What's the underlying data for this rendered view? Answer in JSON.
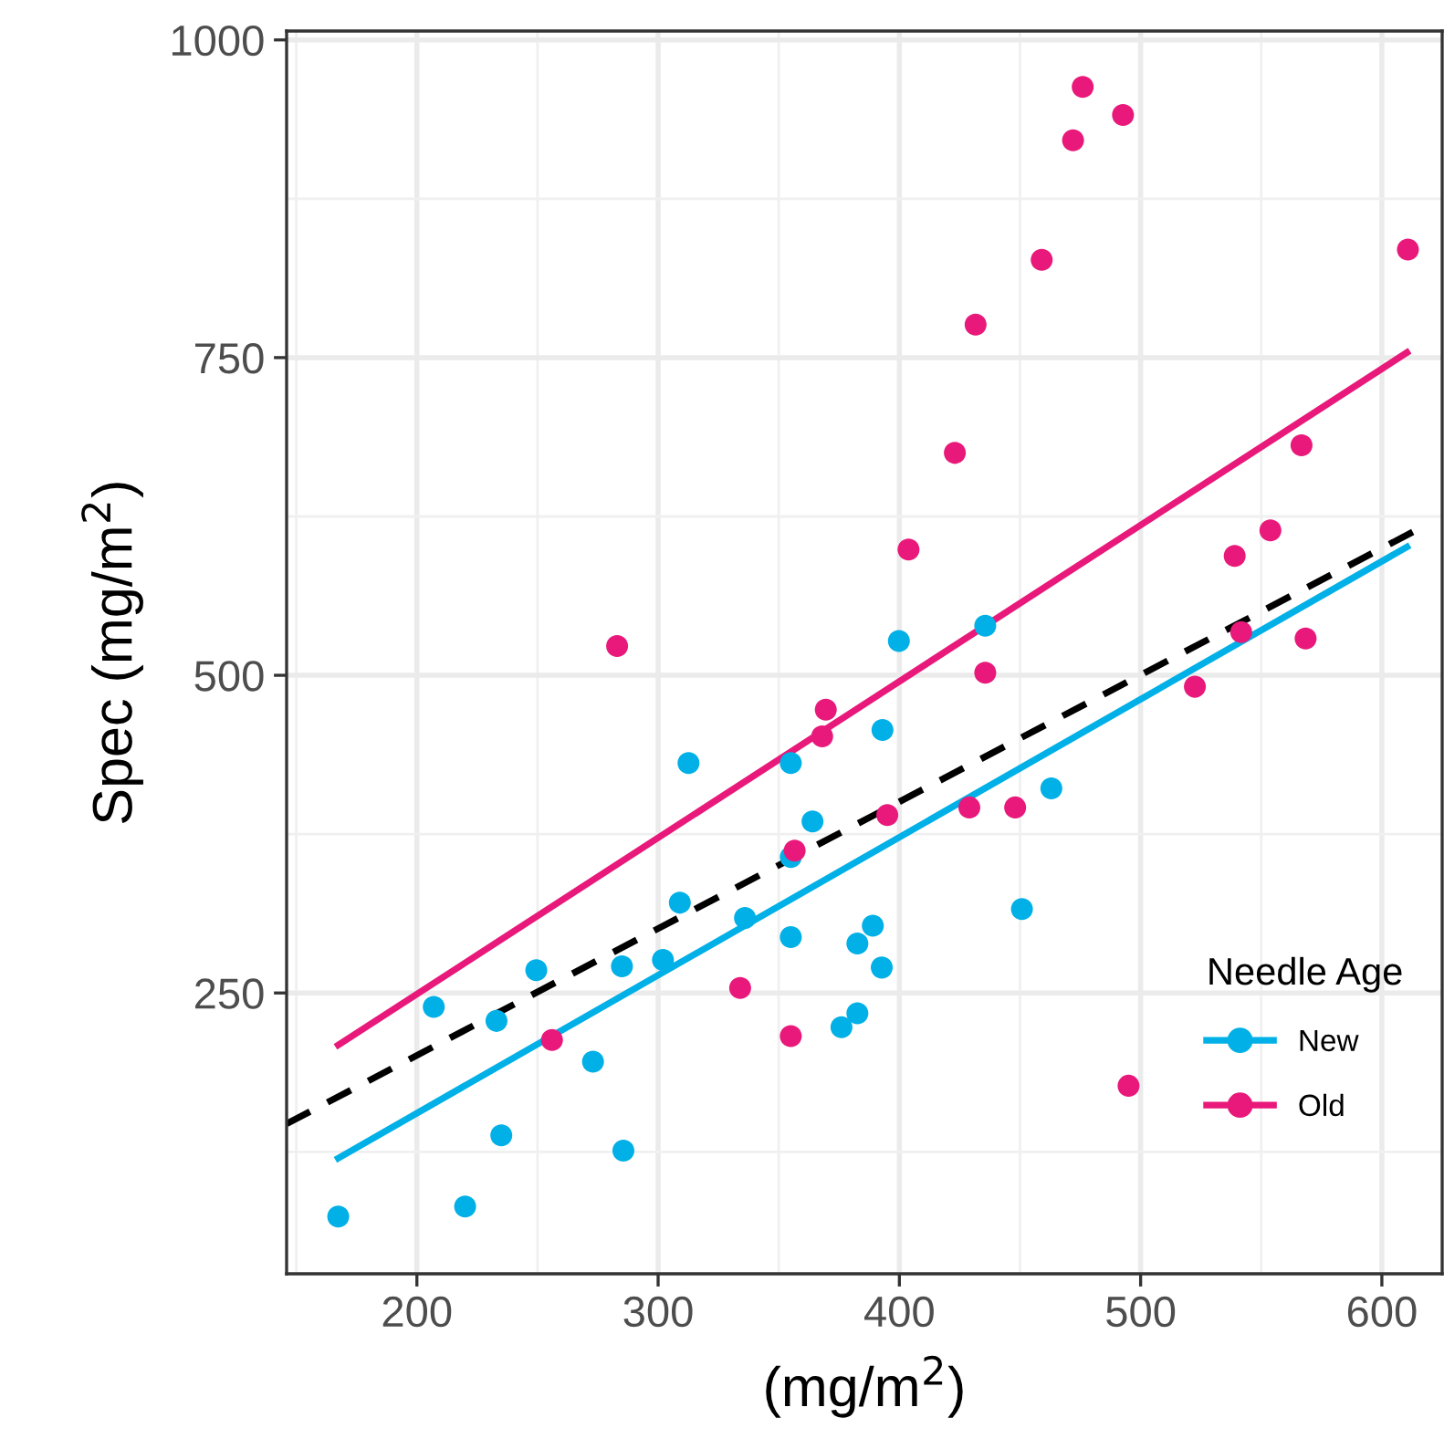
{
  "chart_data": {
    "type": "scatter",
    "xlabel": "(mg/m$^{2}$)",
    "ylabel": "Spec (mg/m$^{2}$)",
    "legend_title": "Needle Age",
    "xlim": [
      146,
      625
    ],
    "ylim": [
      29,
      1007
    ],
    "xticks": [
      200,
      300,
      400,
      500,
      600
    ],
    "yticks": [
      250,
      500,
      750,
      1000
    ],
    "grid": true,
    "legend": "bottom right",
    "marker": "circle",
    "series": [
      {
        "name": "New",
        "color": "#00b0e6",
        "x": [
          167.4,
          220,
          235,
          285.6,
          207,
          233,
          249.5,
          273,
          285,
          302,
          309,
          312.6,
          336,
          355,
          355,
          364,
          355,
          382.6,
          389,
          376,
          382.6,
          392.7,
          393,
          399.8,
          435.6,
          463,
          450.8
        ],
        "values": [
          74,
          82,
          138,
          126,
          239,
          228,
          268,
          196,
          271,
          276,
          321,
          431,
          309,
          431,
          294,
          385,
          357,
          289,
          303,
          223,
          234,
          270,
          457,
          527,
          539,
          411,
          316
        ]
      },
      {
        "name": "Old",
        "color": "#e8197a",
        "x": [
          283,
          369.5,
          368,
          356.6,
          256,
          334,
          355,
          435.6,
          395,
          429,
          448,
          522.5,
          541.7,
          568.4,
          495,
          403.8,
          423,
          431.6,
          459,
          472,
          476,
          492.7,
          610.8,
          566.7,
          553.8,
          539
        ],
        "values": [
          523,
          473,
          452,
          362,
          213,
          254,
          216,
          502,
          390,
          396,
          396,
          491,
          534,
          529,
          177,
          599,
          675,
          776,
          827,
          921,
          963,
          941,
          835,
          681,
          614,
          594
        ]
      },
      {
        "color": "#e8197a",
        "type": "line",
        "marker": "none",
        "line_style": "solid",
        "x": [
          167.4,
          610.4
        ],
        "values": [
          209,
          754
        ]
      },
      {
        "color": "#00b0e6",
        "type": "line",
        "marker": "none",
        "line_style": "solid",
        "x": [
          167.4,
          610.4
        ],
        "values": [
          120,
          601
        ]
      },
      {
        "color": "#000000",
        "type": "line",
        "marker": "none",
        "line_style": "dashed",
        "x": [
          146,
          617
        ],
        "values": [
          147,
          617
        ]
      }
    ]
  }
}
